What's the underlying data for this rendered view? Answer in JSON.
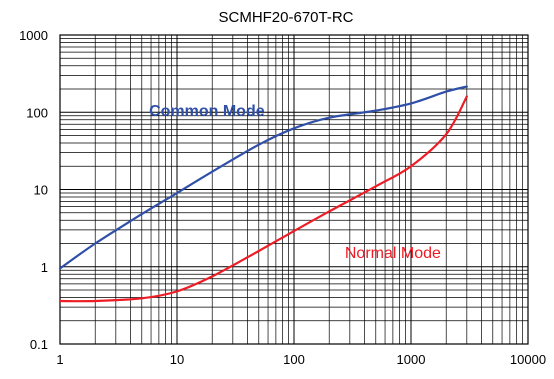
{
  "chart_data": {
    "type": "line",
    "title": "SCMHF20-670T-RC",
    "xlabel": "",
    "ylabel": "",
    "xscale": "log",
    "yscale": "log",
    "xlim": [
      1,
      10000
    ],
    "ylim": [
      0.1,
      1000
    ],
    "grid": true,
    "x_tick_labels": [
      "1",
      "10",
      "100",
      "1000",
      "10000"
    ],
    "y_tick_labels": [
      "1000",
      "100",
      "10",
      "1",
      "0.1"
    ],
    "series": [
      {
        "name": "Common Mode",
        "color": "#3050a8",
        "x": [
          1,
          2,
          5,
          10,
          20,
          50,
          100,
          200,
          500,
          1000,
          2000,
          3000
        ],
        "y": [
          0.95,
          2.0,
          4.8,
          9.0,
          17,
          38,
          62,
          85,
          105,
          130,
          185,
          215
        ]
      },
      {
        "name": "Normal Mode",
        "color": "#ee1c24",
        "x": [
          1,
          2,
          5,
          10,
          20,
          50,
          100,
          200,
          500,
          1000,
          2000,
          3000
        ],
        "y": [
          0.36,
          0.36,
          0.39,
          0.48,
          0.75,
          1.6,
          2.9,
          5.2,
          11,
          20,
          52,
          160
        ]
      }
    ]
  }
}
